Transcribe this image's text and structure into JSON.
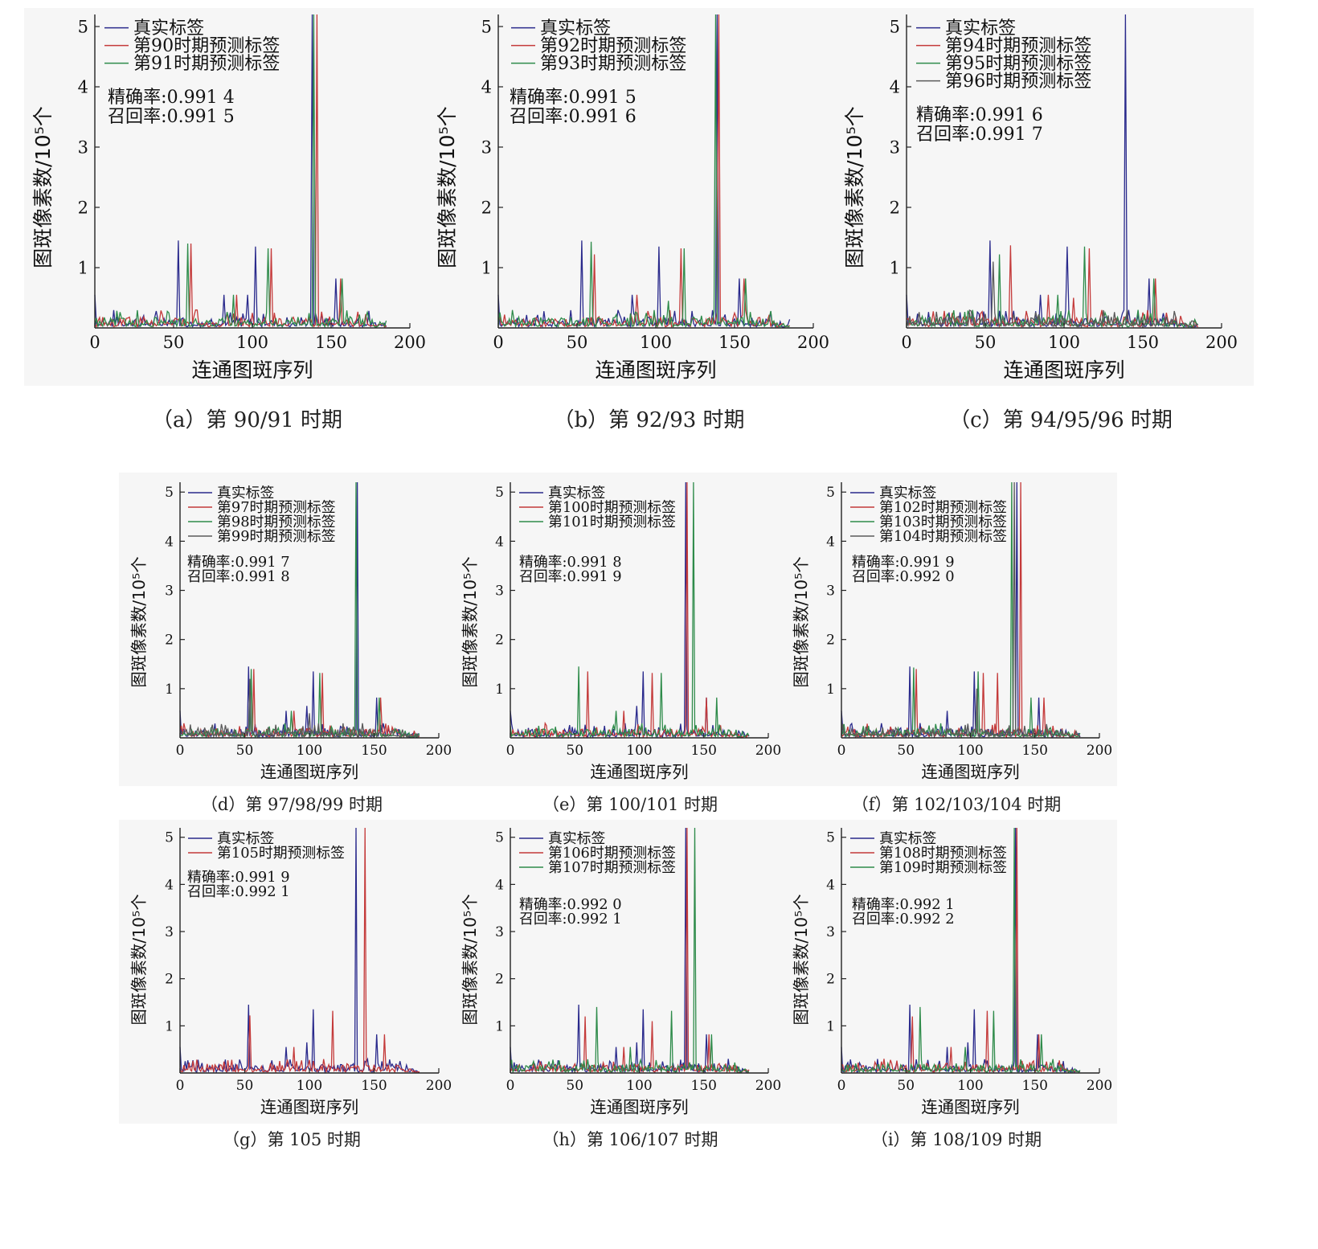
{
  "figure": {
    "colors": {
      "true": "#2a2a8c",
      "pred1": "#c43a3a",
      "pred2": "#2e8b4a",
      "pred3": "#5a5a5a"
    }
  },
  "chart_data": [
    {
      "id": "a",
      "type": "line",
      "caption": "（a）第 90/91 时期",
      "xlabel": "连通图斑序列",
      "ylabel": "图斑像素数/10⁵个",
      "xlim": [
        0,
        200
      ],
      "ylim": [
        0,
        5.2
      ],
      "xticks": [
        "0",
        "50",
        "100",
        "150",
        "200"
      ],
      "yticks": [
        "1",
        "2",
        "3",
        "4",
        "5"
      ],
      "legend": [
        "真实标签",
        "第90时期预测标签",
        "第91时期预测标签"
      ],
      "metrics": [
        "精确率:0.991 4",
        "召回率:0.991 5"
      ],
      "peaks": [
        [
          53,
          1.45
        ],
        [
          102,
          1.35
        ],
        [
          138,
          5.2
        ],
        [
          155,
          0.82
        ]
      ],
      "series": [
        {
          "color": "true",
          "peaks": [
            [
              53,
              1.45
            ],
            [
              82,
              0.55
            ],
            [
              97,
              0.55
            ],
            [
              102,
              1.35
            ],
            [
              138,
              5.2
            ],
            [
              153,
              0.82
            ]
          ]
        },
        {
          "color": "pred1",
          "peaks": [
            [
              61,
              1.4
            ],
            [
              90,
              0.55
            ],
            [
              112,
              1.32
            ],
            [
              141,
              5.2
            ],
            [
              156,
              0.82
            ]
          ]
        },
        {
          "color": "pred2",
          "peaks": [
            [
              59,
              1.4
            ],
            [
              88,
              0.55
            ],
            [
              110,
              1.32
            ],
            [
              139,
              5.2
            ],
            [
              157,
              0.82
            ]
          ]
        }
      ]
    },
    {
      "id": "b",
      "type": "line",
      "caption": "（b）第 92/93 时期",
      "xlabel": "连通图斑序列",
      "ylabel": "图斑像素数/10⁵个",
      "xlim": [
        0,
        200
      ],
      "ylim": [
        0,
        5.2
      ],
      "xticks": [
        "0",
        "50",
        "100",
        "150",
        "200"
      ],
      "yticks": [
        "1",
        "2",
        "3",
        "4",
        "5"
      ],
      "legend": [
        "真实标签",
        "第92时期预测标签",
        "第93时期预测标签"
      ],
      "metrics": [
        "精确率:0.991 5",
        "召回率:0.991 6"
      ],
      "series": [
        {
          "color": "true",
          "peaks": [
            [
              53,
              1.45
            ],
            [
              85,
              0.55
            ],
            [
              102,
              1.35
            ],
            [
              139,
              5.2
            ],
            [
              153,
              0.82
            ]
          ]
        },
        {
          "color": "pred1",
          "peaks": [
            [
              61,
              1.22
            ],
            [
              88,
              0.55
            ],
            [
              116,
              1.32
            ],
            [
              140,
              5.2
            ],
            [
              156,
              0.82
            ]
          ]
        },
        {
          "color": "pred2",
          "peaks": [
            [
              59,
              1.43
            ],
            [
              108,
              0.45
            ],
            [
              118,
              1.32
            ],
            [
              138,
              5.2
            ],
            [
              157,
              0.82
            ]
          ]
        }
      ]
    },
    {
      "id": "c",
      "type": "line",
      "caption": "（c）第 94/95/96 时期",
      "xlabel": "连通图斑序列",
      "ylabel": "图斑像素数/10⁵个",
      "xlim": [
        0,
        200
      ],
      "ylim": [
        0,
        5.2
      ],
      "xticks": [
        "0",
        "50",
        "100",
        "150",
        "200"
      ],
      "yticks": [
        "1",
        "2",
        "3",
        "4",
        "5"
      ],
      "legend": [
        "真实标签",
        "第94时期预测标签",
        "第95时期预测标签",
        "第96时期预测标签"
      ],
      "metrics": [
        "精确率:0.991 6",
        "召回率:0.991 7"
      ],
      "series": [
        {
          "color": "true",
          "peaks": [
            [
              53,
              1.45
            ],
            [
              85,
              0.55
            ],
            [
              102,
              1.35
            ],
            [
              139,
              5.2
            ],
            [
              154,
              0.82
            ]
          ]
        },
        {
          "color": "pred1",
          "peaks": [
            [
              66,
              1.37
            ],
            [
              90,
              0.55
            ],
            [
              106,
              0.5
            ],
            [
              116,
              1.32
            ],
            [
              158,
              0.82
            ]
          ]
        },
        {
          "color": "pred2",
          "peaks": [
            [
              59,
              1.22
            ],
            [
              96,
              0.55
            ],
            [
              113,
              1.35
            ],
            [
              157,
              0.82
            ]
          ]
        },
        {
          "color": "pred3",
          "peaks": [
            [
              55,
              1.1
            ],
            [
              140,
              0.3
            ]
          ]
        }
      ]
    },
    {
      "id": "d",
      "type": "line",
      "caption": "（d）第 97/98/99 时期",
      "xlabel": "连通图斑序列",
      "ylabel": "图斑像素数/10⁵个",
      "xlim": [
        0,
        200
      ],
      "ylim": [
        0,
        5.2
      ],
      "xticks": [
        "0",
        "50",
        "100",
        "150",
        "200"
      ],
      "yticks": [
        "1",
        "2",
        "3",
        "4",
        "5"
      ],
      "legend": [
        "真实标签",
        "第97时期预测标签",
        "第98时期预测标签",
        "第99时期预测标签"
      ],
      "metrics": [
        "精确率:0.991 7",
        "召回率:0.991 8"
      ],
      "series": [
        {
          "color": "true",
          "peaks": [
            [
              53,
              1.45
            ],
            [
              82,
              0.55
            ],
            [
              98,
              0.65
            ],
            [
              103,
              1.35
            ],
            [
              137,
              5.2
            ],
            [
              152,
              0.82
            ]
          ]
        },
        {
          "color": "pred1",
          "peaks": [
            [
              57,
              1.4
            ],
            [
              88,
              0.55
            ],
            [
              110,
              1.32
            ],
            [
              155,
              0.82
            ]
          ]
        },
        {
          "color": "pred2",
          "peaks": [
            [
              55,
              1.4
            ],
            [
              86,
              0.55
            ],
            [
              108,
              1.32
            ],
            [
              136,
              5.2
            ],
            [
              154,
              0.82
            ]
          ]
        },
        {
          "color": "pred3",
          "peaks": [
            [
              54,
              1.2
            ],
            [
              100,
              0.5
            ]
          ]
        }
      ]
    },
    {
      "id": "e",
      "type": "line",
      "caption": "（e）第 100/101 时期",
      "xlabel": "连通图斑序列",
      "ylabel": "图斑像素数/10⁵个",
      "xlim": [
        0,
        200
      ],
      "ylim": [
        0,
        5.2
      ],
      "xticks": [
        "0",
        "50",
        "100",
        "150",
        "200"
      ],
      "yticks": [
        "1",
        "2",
        "3",
        "4",
        "5"
      ],
      "legend": [
        "真实标签",
        "第100时期预测标签",
        "第101时期预测标签"
      ],
      "metrics": [
        "精确率:0.991 8",
        "召回率:0.991 9"
      ],
      "series": [
        {
          "color": "true",
          "peaks": [
            [
              98,
              0.65
            ],
            [
              103,
              1.35
            ],
            [
              136,
              5.2
            ],
            [
              152,
              0.82
            ]
          ]
        },
        {
          "color": "pred1",
          "peaks": [
            [
              60,
              1.35
            ],
            [
              88,
              0.55
            ],
            [
              110,
              1.32
            ],
            [
              137,
              5.2
            ],
            [
              152,
              0.82
            ]
          ]
        },
        {
          "color": "pred2",
          "peaks": [
            [
              53,
              1.45
            ],
            [
              82,
              0.55
            ],
            [
              117,
              1.32
            ],
            [
              142,
              5.2
            ],
            [
              160,
              0.82
            ]
          ]
        }
      ]
    },
    {
      "id": "f",
      "type": "line",
      "caption": "（f）第 102/103/104 时期",
      "xlabel": "连通图斑序列",
      "ylabel": "图斑像素数/10⁵个",
      "xlim": [
        0,
        200
      ],
      "ylim": [
        0,
        5.2
      ],
      "xticks": [
        "0",
        "50",
        "100",
        "150",
        "200"
      ],
      "yticks": [
        "1",
        "2",
        "3",
        "4",
        "5"
      ],
      "legend": [
        "真实标签",
        "第102时期预测标签",
        "第103时期预测标签",
        "第104时期预测标签"
      ],
      "metrics": [
        "精确率:0.991 9",
        "召回率:0.992 0"
      ],
      "series": [
        {
          "color": "true",
          "peaks": [
            [
              53,
              1.45
            ],
            [
              82,
              0.55
            ],
            [
              103,
              1.35
            ],
            [
              136,
              5.2
            ],
            [
              153,
              0.82
            ]
          ]
        },
        {
          "color": "pred1",
          "peaks": [
            [
              58,
              1.4
            ],
            [
              110,
              1.32
            ],
            [
              121,
              1.32
            ],
            [
              139,
              5.2
            ],
            [
              157,
              0.82
            ]
          ]
        },
        {
          "color": "pred2",
          "peaks": [
            [
              56,
              1.43
            ],
            [
              106,
              1.35
            ],
            [
              132,
              5.2
            ],
            [
              147,
              0.82
            ]
          ]
        },
        {
          "color": "pred3",
          "peaks": [
            [
              105,
              1.0
            ],
            [
              134,
              5.2
            ]
          ]
        }
      ]
    },
    {
      "id": "g",
      "type": "line",
      "caption": "（g）第 105 时期",
      "xlabel": "连通图斑序列",
      "ylabel": "图斑像素数/10⁵个",
      "xlim": [
        0,
        200
      ],
      "ylim": [
        0,
        5.2
      ],
      "xticks": [
        "0",
        "50",
        "100",
        "150",
        "200"
      ],
      "yticks": [
        "1",
        "2",
        "3",
        "4",
        "5"
      ],
      "legend": [
        "真实标签",
        "第105时期预测标签"
      ],
      "metrics": [
        "精确率:0.991 9",
        "召回率:0.992 1"
      ],
      "series": [
        {
          "color": "true",
          "peaks": [
            [
              53,
              1.45
            ],
            [
              82,
              0.55
            ],
            [
              98,
              0.65
            ],
            [
              103,
              1.35
            ],
            [
              136,
              5.2
            ],
            [
              152,
              0.82
            ]
          ]
        },
        {
          "color": "pred1",
          "peaks": [
            [
              54,
              1.22
            ],
            [
              88,
              0.55
            ],
            [
              118,
              1.32
            ],
            [
              143,
              5.2
            ],
            [
              158,
              0.82
            ]
          ]
        }
      ]
    },
    {
      "id": "h",
      "type": "line",
      "caption": "（h）第 106/107 时期",
      "xlabel": "连通图斑序列",
      "ylabel": "图斑像素数/10⁵个",
      "xlim": [
        0,
        200
      ],
      "ylim": [
        0,
        5.2
      ],
      "xticks": [
        "0",
        "50",
        "100",
        "150",
        "200"
      ],
      "yticks": [
        "1",
        "2",
        "3",
        "4",
        "5"
      ],
      "legend": [
        "真实标签",
        "第106时期预测标签",
        "第107时期预测标签"
      ],
      "metrics": [
        "精确率:0.992 0",
        "召回率:0.992 1"
      ],
      "series": [
        {
          "color": "true",
          "peaks": [
            [
              53,
              1.45
            ],
            [
              82,
              0.55
            ],
            [
              98,
              0.65
            ],
            [
              103,
              1.35
            ],
            [
              136,
              5.2
            ],
            [
              152,
              0.82
            ]
          ]
        },
        {
          "color": "pred1",
          "peaks": [
            [
              58,
              1.2
            ],
            [
              88,
              0.55
            ],
            [
              110,
              1.1
            ],
            [
              137,
              5.2
            ],
            [
              154,
              0.82
            ]
          ]
        },
        {
          "color": "pred2",
          "peaks": [
            [
              67,
              1.4
            ],
            [
              93,
              0.55
            ],
            [
              125,
              1.32
            ],
            [
              143,
              5.2
            ],
            [
              156,
              0.82
            ]
          ]
        }
      ]
    },
    {
      "id": "i",
      "type": "line",
      "caption": "（i）第 108/109 时期",
      "xlabel": "连通图斑序列",
      "ylabel": "图斑像素数/10⁵个",
      "xlim": [
        0,
        200
      ],
      "ylim": [
        0,
        5.2
      ],
      "xticks": [
        "0",
        "50",
        "100",
        "150",
        "200"
      ],
      "yticks": [
        "1",
        "2",
        "3",
        "4",
        "5"
      ],
      "legend": [
        "真实标签",
        "第108时期预测标签",
        "第109时期预测标签"
      ],
      "metrics": [
        "精确率:0.992 1",
        "召回率:0.992 2"
      ],
      "series": [
        {
          "color": "true",
          "peaks": [
            [
              53,
              1.45
            ],
            [
              82,
              0.55
            ],
            [
              98,
              0.65
            ],
            [
              103,
              1.35
            ],
            [
              135,
              5.2
            ],
            [
              152,
              0.82
            ]
          ]
        },
        {
          "color": "pred1",
          "peaks": [
            [
              55,
              1.2
            ],
            [
              85,
              0.55
            ],
            [
              113,
              1.32
            ],
            [
              136,
              5.2
            ],
            [
              153,
              0.82
            ]
          ]
        },
        {
          "color": "pred2",
          "peaks": [
            [
              61,
              1.4
            ],
            [
              96,
              0.55
            ],
            [
              118,
              1.32
            ],
            [
              134,
              5.2
            ],
            [
              155,
              0.82
            ]
          ]
        }
      ]
    }
  ]
}
